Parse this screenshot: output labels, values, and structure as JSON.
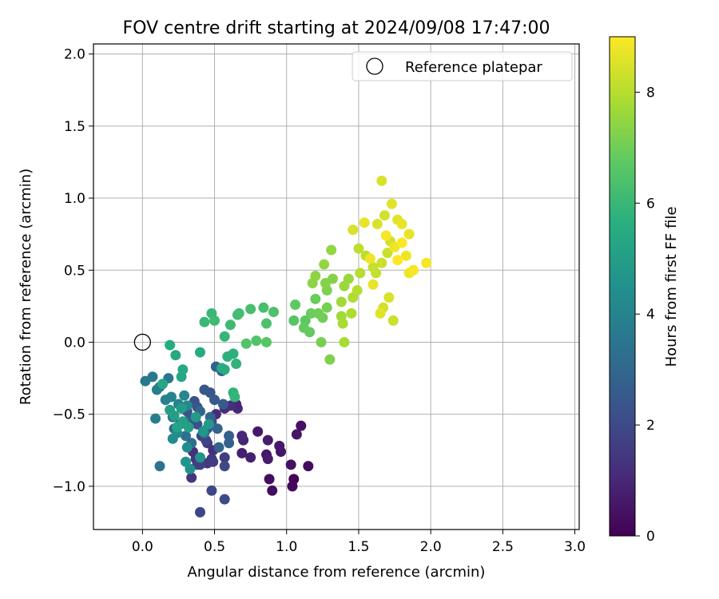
{
  "chart_data": {
    "type": "scatter",
    "title": "FOV centre drift starting at 2024/09/08 17:47:00",
    "xlabel": "Angular distance from reference (arcmin)",
    "ylabel": "Rotation from reference (arcmin)",
    "xlim": [
      -0.34,
      3.03
    ],
    "ylim": [
      -1.3,
      2.07
    ],
    "xticks": [
      0.0,
      0.5,
      1.0,
      1.5,
      2.0,
      2.5,
      3.0
    ],
    "xtick_labels": [
      "0.0",
      "0.5",
      "1.0",
      "1.5",
      "2.0",
      "2.5",
      "3.0"
    ],
    "yticks": [
      -1.0,
      -0.5,
      0.0,
      0.5,
      1.0,
      1.5,
      2.0
    ],
    "ytick_labels": [
      "−1.0",
      "−0.5",
      "0.0",
      "0.5",
      "1.0",
      "1.5",
      "2.0"
    ],
    "grid": true,
    "legend": {
      "position": "top-right",
      "entries": [
        "Reference platepar"
      ]
    },
    "reference_point": {
      "x": 0.0,
      "y": 0.0
    },
    "colorbar": {
      "label": "Hours from first FF file",
      "range": [
        0,
        9
      ],
      "ticks": [
        0,
        2,
        4,
        6,
        8
      ],
      "tick_labels": [
        "0",
        "2",
        "4",
        "6",
        "8"
      ],
      "colormap": "viridis"
    },
    "series": [
      {
        "points": [
          {
            "x": 1.05,
            "y": -0.95,
            "c": 0.1
          },
          {
            "x": 1.04,
            "y": -1.0,
            "c": 0.2
          },
          {
            "x": 0.9,
            "y": -1.03,
            "c": 0.3
          },
          {
            "x": 0.88,
            "y": -0.95,
            "c": 0.3
          },
          {
            "x": 1.15,
            "y": -0.86,
            "c": 0.3
          },
          {
            "x": 1.03,
            "y": -0.85,
            "c": 0.4
          },
          {
            "x": 1.1,
            "y": -0.58,
            "c": 0.4
          },
          {
            "x": 1.07,
            "y": -0.64,
            "c": 0.5
          },
          {
            "x": 0.96,
            "y": -0.76,
            "c": 0.5
          },
          {
            "x": 0.95,
            "y": -0.72,
            "c": 0.6
          },
          {
            "x": 0.87,
            "y": -0.68,
            "c": 0.7
          },
          {
            "x": 0.86,
            "y": -0.78,
            "c": 0.6
          },
          {
            "x": 0.87,
            "y": -0.81,
            "c": 0.7
          },
          {
            "x": 0.75,
            "y": -0.8,
            "c": 0.8
          },
          {
            "x": 0.69,
            "y": -0.77,
            "c": 0.8
          },
          {
            "x": 0.8,
            "y": -0.62,
            "c": 0.6
          },
          {
            "x": 0.7,
            "y": -0.68,
            "c": 0.9
          },
          {
            "x": 0.69,
            "y": -0.65,
            "c": 1.0
          },
          {
            "x": 0.65,
            "y": -0.43,
            "c": 0.9
          },
          {
            "x": 0.66,
            "y": -0.46,
            "c": 1.0
          },
          {
            "x": 0.57,
            "y": -0.46,
            "c": 1.1
          },
          {
            "x": 0.61,
            "y": -0.44,
            "c": 1.2
          },
          {
            "x": 0.51,
            "y": -0.5,
            "c": 1.1
          },
          {
            "x": 0.49,
            "y": -0.75,
            "c": 1.2
          },
          {
            "x": 0.35,
            "y": -0.76,
            "c": 1.2
          },
          {
            "x": 0.37,
            "y": -0.81,
            "c": 1.3
          },
          {
            "x": 0.34,
            "y": -0.94,
            "c": 1.3
          },
          {
            "x": 0.48,
            "y": -0.81,
            "c": 1.4
          },
          {
            "x": 0.45,
            "y": -0.84,
            "c": 1.5
          },
          {
            "x": 0.45,
            "y": -0.7,
            "c": 1.5
          },
          {
            "x": 0.57,
            "y": -0.8,
            "c": 1.6
          },
          {
            "x": 0.49,
            "y": -0.83,
            "c": 1.6
          },
          {
            "x": 0.4,
            "y": -0.85,
            "c": 1.7
          },
          {
            "x": 0.38,
            "y": -0.85,
            "c": 1.7
          },
          {
            "x": 0.41,
            "y": -0.65,
            "c": 1.8
          },
          {
            "x": 0.44,
            "y": -0.68,
            "c": 1.8
          },
          {
            "x": 0.48,
            "y": -1.03,
            "c": 1.9
          },
          {
            "x": 0.4,
            "y": -1.18,
            "c": 1.9
          },
          {
            "x": 0.57,
            "y": -1.09,
            "c": 2.0
          },
          {
            "x": 0.57,
            "y": -0.86,
            "c": 2.0
          },
          {
            "x": 0.45,
            "y": -0.6,
            "c": 2.1
          },
          {
            "x": 0.48,
            "y": -0.55,
            "c": 2.1
          },
          {
            "x": 0.38,
            "y": -0.57,
            "c": 2.2
          },
          {
            "x": 0.34,
            "y": -0.53,
            "c": 2.2
          },
          {
            "x": 0.31,
            "y": -0.48,
            "c": 2.3
          },
          {
            "x": 0.36,
            "y": -0.41,
            "c": 2.3
          },
          {
            "x": 0.38,
            "y": -0.45,
            "c": 2.4
          },
          {
            "x": 0.47,
            "y": -0.35,
            "c": 2.4
          },
          {
            "x": 0.43,
            "y": -0.33,
            "c": 2.5
          },
          {
            "x": 0.5,
            "y": -0.4,
            "c": 2.5
          },
          {
            "x": 0.56,
            "y": -0.43,
            "c": 2.6
          },
          {
            "x": 0.55,
            "y": -0.2,
            "c": 2.6
          },
          {
            "x": 0.51,
            "y": -0.17,
            "c": 2.7
          },
          {
            "x": 0.6,
            "y": -0.65,
            "c": 2.7
          },
          {
            "x": 0.6,
            "y": -0.7,
            "c": 2.8
          },
          {
            "x": 0.53,
            "y": -0.73,
            "c": 2.8
          },
          {
            "x": 0.52,
            "y": -0.6,
            "c": 2.9
          },
          {
            "x": 0.47,
            "y": -0.52,
            "c": 3.0
          },
          {
            "x": 0.4,
            "y": -0.48,
            "c": 3.0
          },
          {
            "x": 0.3,
            "y": -0.55,
            "c": 3.1
          },
          {
            "x": 0.26,
            "y": -0.57,
            "c": 3.1
          },
          {
            "x": 0.21,
            "y": -0.52,
            "c": 3.2
          },
          {
            "x": 0.22,
            "y": -0.6,
            "c": 3.2
          },
          {
            "x": 0.3,
            "y": -0.65,
            "c": 3.3
          },
          {
            "x": 0.34,
            "y": -0.7,
            "c": 3.3
          },
          {
            "x": 0.43,
            "y": -0.63,
            "c": 3.4
          },
          {
            "x": 0.12,
            "y": -0.86,
            "c": 3.4
          },
          {
            "x": 0.18,
            "y": -0.25,
            "c": 3.5
          },
          {
            "x": 0.07,
            "y": -0.24,
            "c": 3.6
          },
          {
            "x": 0.02,
            "y": -0.27,
            "c": 3.6
          },
          {
            "x": 0.12,
            "y": -0.31,
            "c": 3.7
          },
          {
            "x": 0.1,
            "y": -0.33,
            "c": 3.8
          },
          {
            "x": 0.09,
            "y": -0.53,
            "c": 3.8
          },
          {
            "x": 0.16,
            "y": -0.4,
            "c": 3.9
          },
          {
            "x": 0.2,
            "y": -0.38,
            "c": 4.0
          },
          {
            "x": 0.25,
            "y": -0.43,
            "c": 4.0
          },
          {
            "x": 0.29,
            "y": -0.37,
            "c": 4.1
          },
          {
            "x": 0.31,
            "y": -0.44,
            "c": 4.2
          },
          {
            "x": 0.28,
            "y": -0.56,
            "c": 4.2
          },
          {
            "x": 0.24,
            "y": -0.63,
            "c": 4.3
          },
          {
            "x": 0.21,
            "y": -0.67,
            "c": 4.4
          },
          {
            "x": 0.31,
            "y": -0.73,
            "c": 4.4
          },
          {
            "x": 0.33,
            "y": -0.88,
            "c": 4.5
          },
          {
            "x": 0.3,
            "y": -0.83,
            "c": 4.6
          },
          {
            "x": 0.4,
            "y": -0.8,
            "c": 4.6
          },
          {
            "x": 0.42,
            "y": -0.62,
            "c": 4.7
          },
          {
            "x": 0.46,
            "y": -0.57,
            "c": 4.8
          },
          {
            "x": 0.37,
            "y": -0.52,
            "c": 4.8
          },
          {
            "x": 0.27,
            "y": -0.46,
            "c": 4.9
          },
          {
            "x": 0.19,
            "y": -0.47,
            "c": 5.0
          },
          {
            "x": 0.22,
            "y": -0.51,
            "c": 5.0
          },
          {
            "x": 0.28,
            "y": -0.55,
            "c": 5.1
          },
          {
            "x": 0.32,
            "y": -0.59,
            "c": 5.1
          },
          {
            "x": 0.24,
            "y": -0.59,
            "c": 5.2
          },
          {
            "x": 0.14,
            "y": -0.29,
            "c": 5.3
          },
          {
            "x": 0.27,
            "y": -0.24,
            "c": 5.3
          },
          {
            "x": 0.28,
            "y": -0.19,
            "c": 5.4
          },
          {
            "x": 0.23,
            "y": -0.09,
            "c": 5.4
          },
          {
            "x": 0.19,
            "y": -0.02,
            "c": 5.5
          },
          {
            "x": 0.4,
            "y": -0.07,
            "c": 5.5
          },
          {
            "x": 0.55,
            "y": -0.18,
            "c": 5.6
          },
          {
            "x": 0.57,
            "y": -0.19,
            "c": 5.6
          },
          {
            "x": 0.59,
            "y": -0.1,
            "c": 5.7
          },
          {
            "x": 0.63,
            "y": -0.08,
            "c": 5.7
          },
          {
            "x": 0.65,
            "y": -0.15,
            "c": 5.8
          },
          {
            "x": 0.63,
            "y": -0.35,
            "c": 5.8
          },
          {
            "x": 0.64,
            "y": -0.38,
            "c": 5.9
          },
          {
            "x": 0.57,
            "y": 0.04,
            "c": 5.9
          },
          {
            "x": 0.43,
            "y": 0.14,
            "c": 6.0
          },
          {
            "x": 0.48,
            "y": 0.2,
            "c": 6.0
          },
          {
            "x": 0.5,
            "y": 0.15,
            "c": 6.1
          },
          {
            "x": 0.61,
            "y": 0.12,
            "c": 6.1
          },
          {
            "x": 0.66,
            "y": 0.19,
            "c": 6.2
          },
          {
            "x": 0.67,
            "y": 0.2,
            "c": 6.2
          },
          {
            "x": 0.75,
            "y": 0.23,
            "c": 6.3
          },
          {
            "x": 0.84,
            "y": 0.24,
            "c": 6.3
          },
          {
            "x": 0.91,
            "y": 0.21,
            "c": 6.4
          },
          {
            "x": 0.86,
            "y": 0.13,
            "c": 6.4
          },
          {
            "x": 0.79,
            "y": 0.01,
            "c": 6.5
          },
          {
            "x": 0.72,
            "y": -0.01,
            "c": 6.5
          },
          {
            "x": 0.86,
            "y": 0.0,
            "c": 6.6
          },
          {
            "x": 1.05,
            "y": 0.15,
            "c": 6.6
          },
          {
            "x": 1.06,
            "y": 0.26,
            "c": 6.7
          },
          {
            "x": 1.13,
            "y": 0.15,
            "c": 6.7
          },
          {
            "x": 1.12,
            "y": 0.1,
            "c": 6.8
          },
          {
            "x": 1.16,
            "y": 0.07,
            "c": 6.8
          },
          {
            "x": 1.17,
            "y": 0.2,
            "c": 6.9
          },
          {
            "x": 1.2,
            "y": 0.3,
            "c": 6.9
          },
          {
            "x": 1.22,
            "y": 0.2,
            "c": 7.0
          },
          {
            "x": 1.25,
            "y": 0.17,
            "c": 7.0
          },
          {
            "x": 1.28,
            "y": 0.24,
            "c": 7.1
          },
          {
            "x": 1.24,
            "y": 0.0,
            "c": 7.1
          },
          {
            "x": 1.3,
            "y": -0.12,
            "c": 7.2
          },
          {
            "x": 1.28,
            "y": 0.36,
            "c": 7.2
          },
          {
            "x": 1.27,
            "y": 0.41,
            "c": 7.3
          },
          {
            "x": 1.32,
            "y": 0.44,
            "c": 7.3
          },
          {
            "x": 1.2,
            "y": 0.46,
            "c": 7.4
          },
          {
            "x": 1.18,
            "y": 0.41,
            "c": 7.4
          },
          {
            "x": 1.26,
            "y": 0.54,
            "c": 7.5
          },
          {
            "x": 1.31,
            "y": 0.64,
            "c": 7.5
          },
          {
            "x": 1.4,
            "y": 0.39,
            "c": 7.6
          },
          {
            "x": 1.43,
            "y": 0.44,
            "c": 7.6
          },
          {
            "x": 1.38,
            "y": 0.28,
            "c": 7.7
          },
          {
            "x": 1.38,
            "y": 0.18,
            "c": 7.7
          },
          {
            "x": 1.39,
            "y": 0.13,
            "c": 7.8
          },
          {
            "x": 1.4,
            "y": 0.0,
            "c": 7.8
          },
          {
            "x": 1.45,
            "y": 0.2,
            "c": 7.9
          },
          {
            "x": 1.46,
            "y": 0.31,
            "c": 7.9
          },
          {
            "x": 1.49,
            "y": 0.36,
            "c": 8.0
          },
          {
            "x": 1.51,
            "y": 0.48,
            "c": 8.0
          },
          {
            "x": 1.55,
            "y": 0.6,
            "c": 8.1
          },
          {
            "x": 1.5,
            "y": 0.65,
            "c": 8.1
          },
          {
            "x": 1.6,
            "y": 0.52,
            "c": 8.2
          },
          {
            "x": 1.62,
            "y": 0.48,
            "c": 8.2
          },
          {
            "x": 1.66,
            "y": 0.55,
            "c": 8.3
          },
          {
            "x": 1.7,
            "y": 0.62,
            "c": 8.3
          },
          {
            "x": 1.72,
            "y": 0.7,
            "c": 8.4
          },
          {
            "x": 1.68,
            "y": 0.88,
            "c": 8.4
          },
          {
            "x": 1.63,
            "y": 0.82,
            "c": 8.5
          },
          {
            "x": 1.66,
            "y": 1.12,
            "c": 8.5
          },
          {
            "x": 1.73,
            "y": 0.96,
            "c": 8.6
          },
          {
            "x": 1.77,
            "y": 0.85,
            "c": 8.6
          },
          {
            "x": 1.8,
            "y": 0.82,
            "c": 8.7
          },
          {
            "x": 1.85,
            "y": 0.75,
            "c": 8.7
          },
          {
            "x": 1.83,
            "y": 0.6,
            "c": 8.8
          },
          {
            "x": 1.85,
            "y": 0.48,
            "c": 8.8
          },
          {
            "x": 1.88,
            "y": 0.5,
            "c": 8.9
          },
          {
            "x": 1.97,
            "y": 0.55,
            "c": 8.9
          },
          {
            "x": 1.77,
            "y": 0.57,
            "c": 9.0
          },
          {
            "x": 1.71,
            "y": 0.31,
            "c": 8.5
          },
          {
            "x": 1.74,
            "y": 0.15,
            "c": 8.3
          },
          {
            "x": 1.67,
            "y": 0.24,
            "c": 8.4
          },
          {
            "x": 1.65,
            "y": 0.2,
            "c": 8.6
          },
          {
            "x": 1.6,
            "y": 0.4,
            "c": 8.7
          },
          {
            "x": 1.58,
            "y": 0.58,
            "c": 8.8
          },
          {
            "x": 1.46,
            "y": 0.78,
            "c": 8.5
          },
          {
            "x": 1.54,
            "y": 0.83,
            "c": 8.7
          },
          {
            "x": 1.69,
            "y": 0.74,
            "c": 8.9
          },
          {
            "x": 1.8,
            "y": 0.69,
            "c": 9.0
          },
          {
            "x": 1.75,
            "y": 0.66,
            "c": 8.8
          }
        ]
      }
    ]
  }
}
